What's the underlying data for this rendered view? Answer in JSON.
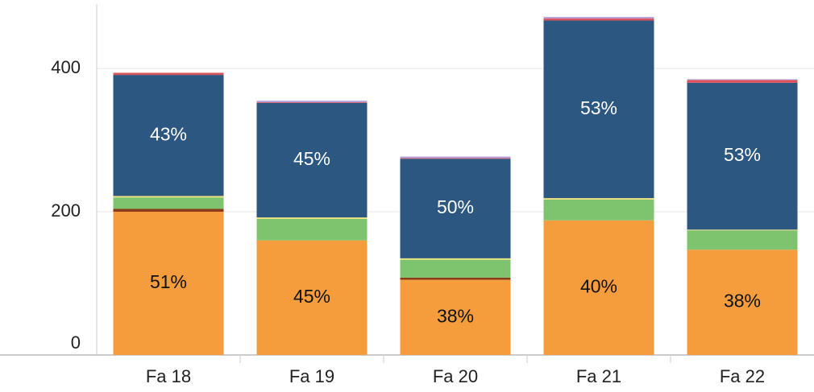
{
  "chart_data": {
    "type": "stacked_bar",
    "categories": [
      "Fa 18",
      "Fa 19",
      "Fa 20",
      "Fa 21",
      "Fa 22"
    ],
    "series": [
      {
        "color": "#f59d3d",
        "values": [
          200,
          160,
          105,
          188,
          147
        ],
        "share_labels": [
          "51%",
          "45%",
          "38%",
          "40%",
          "38%"
        ]
      },
      {
        "color": "#8b3a1a",
        "values": [
          4,
          0,
          3,
          0,
          0
        ]
      },
      {
        "color": "#7ec46e",
        "values": [
          16,
          30,
          25,
          29,
          27
        ]
      },
      {
        "color": "#f2e27a",
        "values": [
          2,
          2,
          2,
          2,
          1
        ]
      },
      {
        "color": "#2b5781",
        "values": [
          169,
          160,
          139,
          248,
          205
        ],
        "share_labels": [
          "43%",
          "45%",
          "50%",
          "53%",
          "53%"
        ]
      },
      {
        "color": "#d9545a",
        "values": [
          3,
          1,
          1,
          3,
          4
        ]
      },
      {
        "color": "#b59ee0",
        "values": [
          0,
          2,
          2,
          2,
          1
        ]
      }
    ],
    "ylim": [
      0,
      490
    ],
    "yticks": [
      0,
      200,
      400
    ],
    "grid": true
  }
}
